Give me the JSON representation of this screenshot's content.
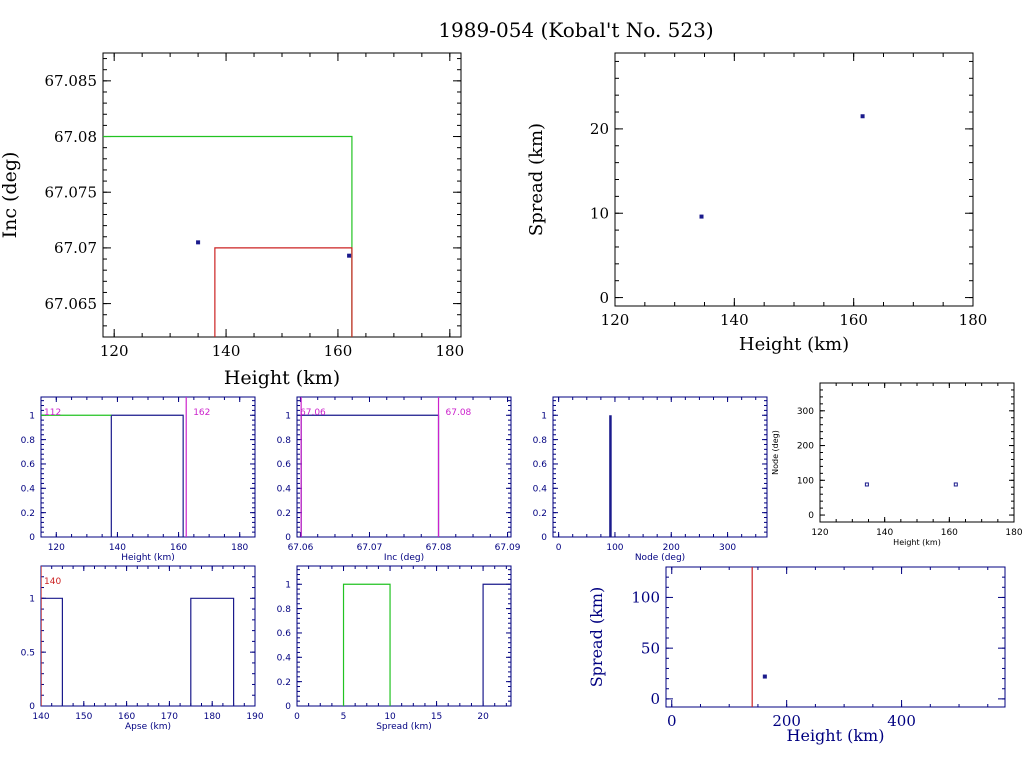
{
  "page_title": "1989-054 (Kobal't No. 523)",
  "colors": {
    "frame": "#000000",
    "blue": "#1a1a8c",
    "green": "#22c322",
    "red": "#cc2222",
    "magenta": "#cc22cc",
    "navy": "#000080",
    "bg": "#ffffff"
  },
  "chart_data": [
    {
      "id": "inc_vs_height",
      "type": "scatter",
      "title": "",
      "xlabel": "Height (km)",
      "ylabel": "Inc (deg)",
      "xlim": [
        118,
        182
      ],
      "ylim": [
        67.062,
        67.0875
      ],
      "xticks": [
        120,
        140,
        160,
        180
      ],
      "yticks": [
        67.065,
        67.07,
        67.075,
        67.08,
        67.085
      ],
      "ytick_labels": [
        "67.065",
        "67.07",
        "67.075",
        "67.08",
        "67.085"
      ],
      "points": [
        {
          "x": 135,
          "y": 67.0705
        },
        {
          "x": 162,
          "y": 67.0693
        }
      ],
      "boxes": [
        {
          "color": "green",
          "x_right": 162.5,
          "y_top": 67.08
        },
        {
          "color": "red",
          "x_left": 138,
          "x_right": 162.5,
          "y_top": 67.07
        }
      ]
    },
    {
      "id": "spread_vs_height",
      "type": "scatter",
      "xlabel": "Height (km)",
      "ylabel": "Spread (km)",
      "xlim": [
        120,
        180
      ],
      "ylim": [
        -1,
        29
      ],
      "xticks": [
        120,
        140,
        160,
        180
      ],
      "yticks": [
        0,
        10,
        20
      ],
      "points": [
        {
          "x": 134.5,
          "y": 9.6
        },
        {
          "x": 161.5,
          "y": 21.5
        }
      ]
    },
    {
      "id": "height_hist",
      "type": "histogram",
      "xlabel": "Height (km)",
      "xlim": [
        115,
        185
      ],
      "ylim": [
        0,
        1.15
      ],
      "xticks": [
        120,
        140,
        160,
        180
      ],
      "yticks": [
        0,
        0.2,
        0.4,
        0.6,
        0.8,
        1
      ],
      "steps": [
        {
          "x0": 138,
          "x1": 161.5,
          "y": 1
        }
      ],
      "green_line": {
        "x0": 115,
        "x1": 138,
        "y": 1
      },
      "marker_line": {
        "x": 162.5
      },
      "annotations": [
        {
          "text": "112",
          "color": "magenta",
          "pos": "left"
        },
        {
          "text": "162",
          "color": "magenta",
          "pos": "right"
        }
      ]
    },
    {
      "id": "inc_hist",
      "type": "histogram",
      "xlabel": "Inc (deg)",
      "xlim": [
        67.0595,
        67.0905
      ],
      "ylim": [
        0,
        1.15
      ],
      "xticks": [
        67.06,
        67.07,
        67.08,
        67.09
      ],
      "xtick_labels": [
        "67.06",
        "67.07",
        "67.08",
        "67.09"
      ],
      "yticks": [
        0,
        0.2,
        0.4,
        0.6,
        0.8,
        1
      ],
      "steps": [
        {
          "x0": 67.0601,
          "x1": 67.08,
          "y": 1
        }
      ],
      "marker_lines": [
        {
          "x": 67.0601
        },
        {
          "x": 67.08
        }
      ],
      "annotations": [
        {
          "text": "67.06",
          "color": "magenta",
          "pos": "left"
        },
        {
          "text": "67.08",
          "color": "magenta",
          "pos": "right"
        }
      ]
    },
    {
      "id": "node_hist",
      "type": "histogram",
      "xlabel": "Node (deg)",
      "xlim": [
        -10,
        370
      ],
      "ylim": [
        0,
        1.15
      ],
      "xticks": [
        0,
        100,
        200,
        300
      ],
      "yticks": [
        0,
        0.2,
        0.4,
        0.6,
        0.8,
        1
      ],
      "spike": {
        "x": 92,
        "y": 1
      }
    },
    {
      "id": "node_vs_height",
      "type": "scatter",
      "xlabel": "Height (km)",
      "ylabel": "Node (deg)",
      "xlim": [
        120,
        180
      ],
      "ylim": [
        -20,
        380
      ],
      "xticks": [
        120,
        140,
        160,
        180
      ],
      "yticks": [
        0,
        100,
        200,
        300
      ],
      "points": [
        {
          "x": 134.5,
          "y": 88
        },
        {
          "x": 162,
          "y": 88
        }
      ]
    },
    {
      "id": "apse_hist",
      "type": "histogram",
      "xlabel": "Apse (km)",
      "xlim": [
        140,
        190
      ],
      "ylim": [
        0,
        1.3
      ],
      "xticks": [
        140,
        150,
        160,
        170,
        180,
        190
      ],
      "yticks": [
        0,
        0.5,
        1
      ],
      "steps": [
        {
          "x0": 140,
          "x1": 145,
          "y": 1
        },
        {
          "x0": 175,
          "x1": 185,
          "y": 1
        }
      ],
      "marker_line": {
        "x": 140
      },
      "annotations": [
        {
          "text": "140",
          "color": "red",
          "pos": "left"
        }
      ]
    },
    {
      "id": "spread_hist",
      "type": "histogram",
      "xlabel": "Spread (km)",
      "xlim": [
        0,
        23
      ],
      "ylim": [
        0,
        1.15
      ],
      "xticks": [
        0,
        5,
        10,
        15,
        20
      ],
      "yticks": [
        0,
        0.2,
        0.4,
        0.6,
        0.8,
        1
      ],
      "green_steps": [
        {
          "x0": 5,
          "x1": 10,
          "y": 1
        }
      ],
      "steps": [
        {
          "x0": 20,
          "x1": 23,
          "y": 1
        }
      ]
    },
    {
      "id": "spread_vs_height_wide",
      "type": "scatter",
      "xlabel": "Height (km)",
      "ylabel": "Spread (km)",
      "xlim": [
        -10,
        580
      ],
      "ylim": [
        -8,
        130
      ],
      "xticks": [
        0,
        200,
        400
      ],
      "yticks": [
        0,
        50,
        100
      ],
      "points": [
        {
          "x": 162,
          "y": 22
        }
      ],
      "marker_line": {
        "x": 140,
        "color": "red"
      }
    }
  ]
}
